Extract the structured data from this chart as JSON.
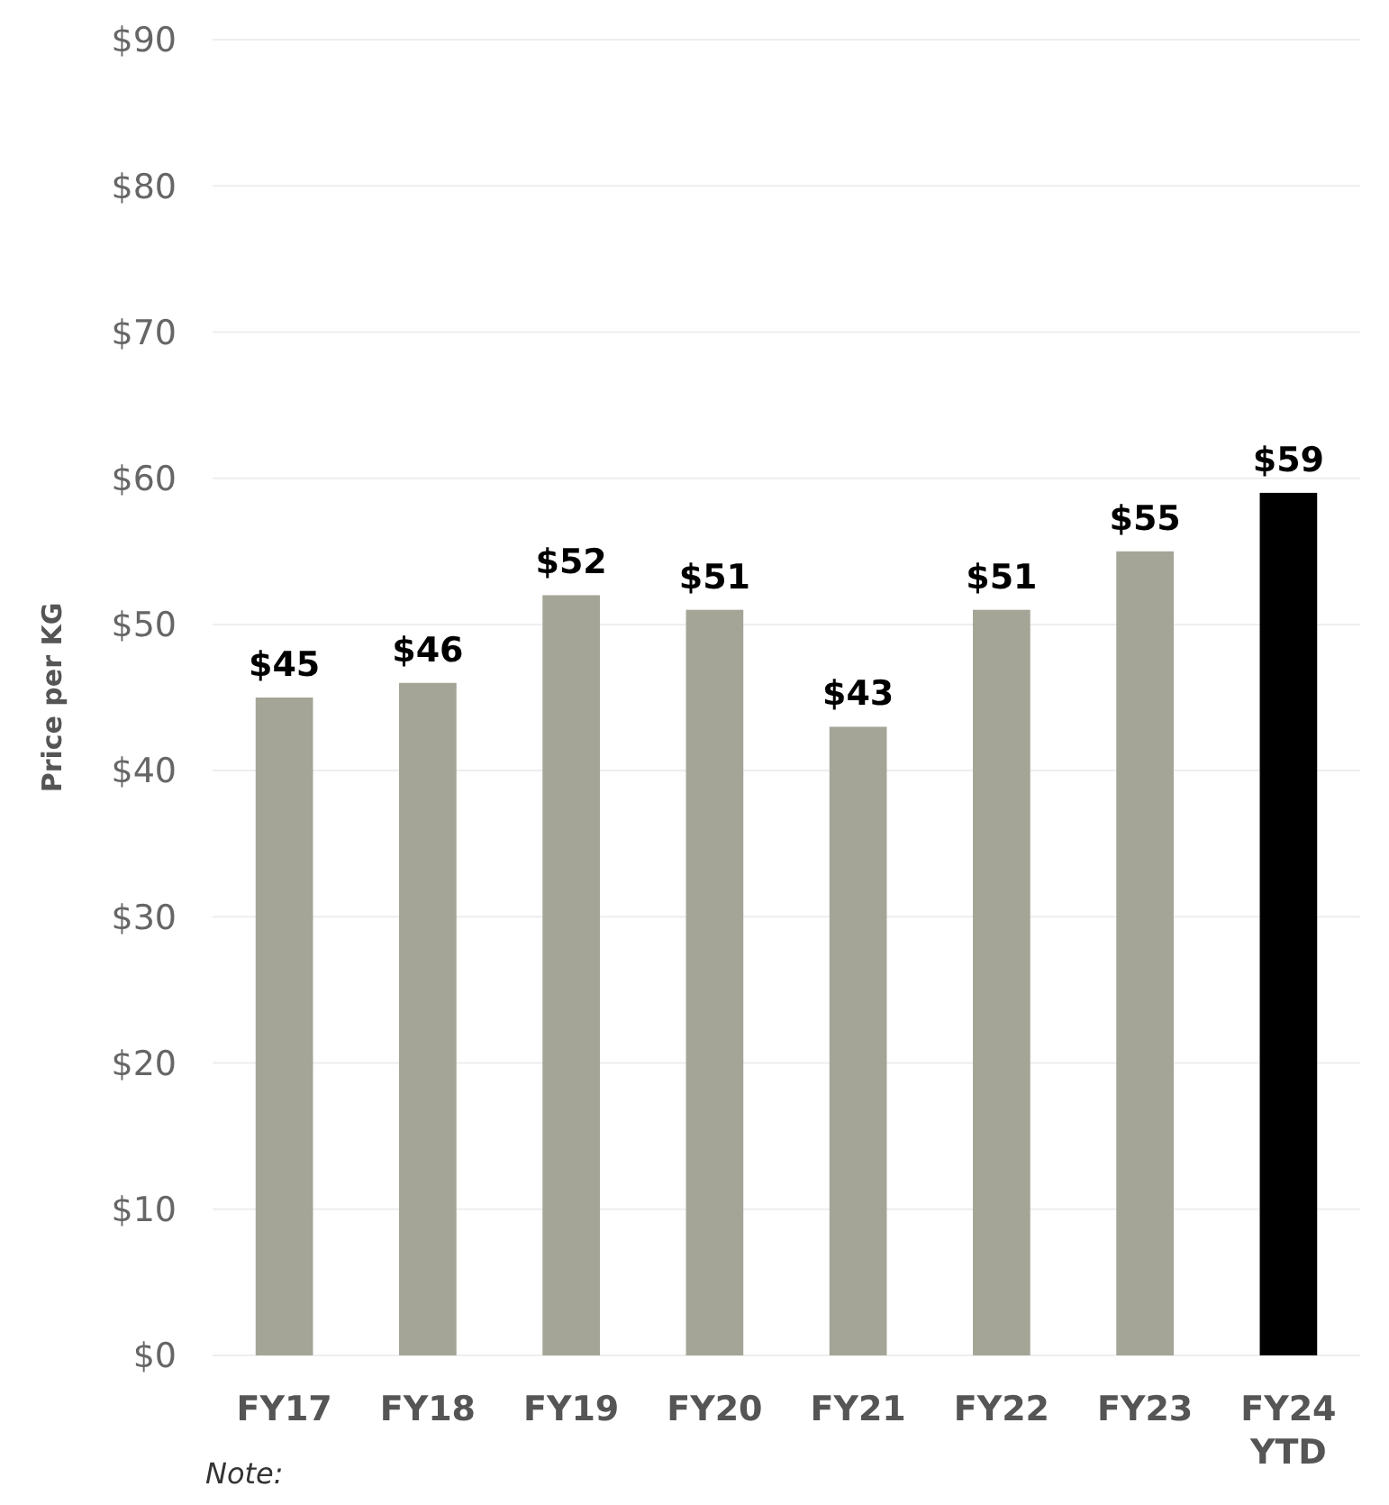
{
  "chart_data": {
    "type": "bar",
    "ylabel": "Price per KG",
    "categories": [
      "FY17",
      "FY18",
      "FY19",
      "FY20",
      "FY21",
      "FY22",
      "FY23",
      "FY24 YTD"
    ],
    "values": [
      45,
      46,
      52,
      51,
      43,
      51,
      55,
      59
    ],
    "colors": [
      "#a4a596",
      "#a4a596",
      "#a4a596",
      "#a4a596",
      "#a4a596",
      "#a4a596",
      "#a4a596",
      "#000000"
    ],
    "value_labels": [
      "$45",
      "$46",
      "$52",
      "$51",
      "$43",
      "$51",
      "$55",
      "$59"
    ],
    "ylim": [
      0,
      90
    ],
    "yticks": [
      {
        "value": 0,
        "label": "$0"
      },
      {
        "value": 10,
        "label": "$10"
      },
      {
        "value": 20,
        "label": "$20"
      },
      {
        "value": 30,
        "label": "$30"
      },
      {
        "value": 40,
        "label": "$40"
      },
      {
        "value": 50,
        "label": "$50"
      },
      {
        "value": 60,
        "label": "$60"
      },
      {
        "value": 70,
        "label": "$70"
      },
      {
        "value": 80,
        "label": "$80"
      },
      {
        "value": 90,
        "label": "$90"
      }
    ],
    "grid": "y",
    "annotations": [
      "Note:"
    ]
  }
}
